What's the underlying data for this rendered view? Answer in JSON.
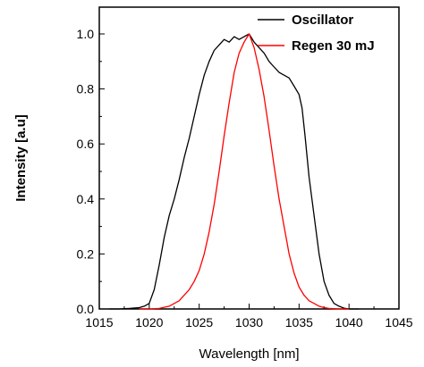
{
  "chart_data": {
    "type": "line",
    "title": "",
    "xlabel": "Wavelength [nm]",
    "ylabel": "Intensity [a.u]",
    "xlim": [
      1015,
      1045
    ],
    "ylim": [
      0.0,
      1.05
    ],
    "xticks": [
      1015,
      1020,
      1025,
      1030,
      1035,
      1040,
      1045
    ],
    "yticks": [
      "0.0",
      "0.2",
      "0.4",
      "0.6",
      "0.8",
      "1.0"
    ],
    "grid": false,
    "legend_position": "top-right",
    "series": [
      {
        "name": "Oscillator",
        "color": "#000000",
        "x": [
          1016,
          1017,
          1018,
          1019,
          1019.5,
          1020,
          1020.5,
          1021,
          1021.5,
          1022,
          1022.5,
          1023,
          1023.5,
          1024,
          1024.5,
          1025,
          1025.5,
          1026,
          1026.5,
          1027,
          1027.5,
          1028,
          1028.5,
          1029,
          1029.5,
          1030,
          1030.5,
          1031,
          1031.5,
          1032,
          1032.5,
          1033,
          1033.5,
          1034,
          1034.5,
          1035,
          1035.3,
          1035.6,
          1036,
          1036.5,
          1037,
          1037.5,
          1038,
          1038.5,
          1039,
          1039.5,
          1040,
          1041
        ],
        "y": [
          0.0,
          0.0,
          0.002,
          0.005,
          0.01,
          0.02,
          0.07,
          0.16,
          0.26,
          0.34,
          0.4,
          0.47,
          0.55,
          0.62,
          0.7,
          0.78,
          0.85,
          0.9,
          0.94,
          0.96,
          0.98,
          0.97,
          0.99,
          0.98,
          0.99,
          1.0,
          0.97,
          0.95,
          0.93,
          0.9,
          0.88,
          0.86,
          0.85,
          0.84,
          0.81,
          0.78,
          0.73,
          0.63,
          0.48,
          0.34,
          0.2,
          0.1,
          0.05,
          0.02,
          0.01,
          0.003,
          0.0,
          0.0
        ]
      },
      {
        "name": "Regen 30 mJ",
        "color": "#ff0000",
        "x": [
          1019,
          1020,
          1021,
          1022,
          1022.5,
          1023,
          1023.5,
          1024,
          1024.5,
          1025,
          1025.5,
          1026,
          1026.5,
          1027,
          1027.5,
          1028,
          1028.5,
          1029,
          1029.5,
          1030,
          1030.5,
          1031,
          1031.5,
          1032,
          1032.5,
          1033,
          1033.5,
          1034,
          1034.5,
          1035,
          1035.5,
          1036,
          1036.5,
          1037,
          1037.5,
          1038,
          1039,
          1040
        ],
        "y": [
          0.0,
          0.0,
          0.002,
          0.01,
          0.02,
          0.03,
          0.05,
          0.07,
          0.1,
          0.14,
          0.2,
          0.28,
          0.38,
          0.5,
          0.63,
          0.75,
          0.86,
          0.93,
          0.97,
          1.0,
          0.95,
          0.87,
          0.77,
          0.65,
          0.52,
          0.4,
          0.3,
          0.2,
          0.13,
          0.08,
          0.05,
          0.03,
          0.02,
          0.01,
          0.005,
          0.002,
          0.0,
          0.0
        ]
      }
    ]
  }
}
